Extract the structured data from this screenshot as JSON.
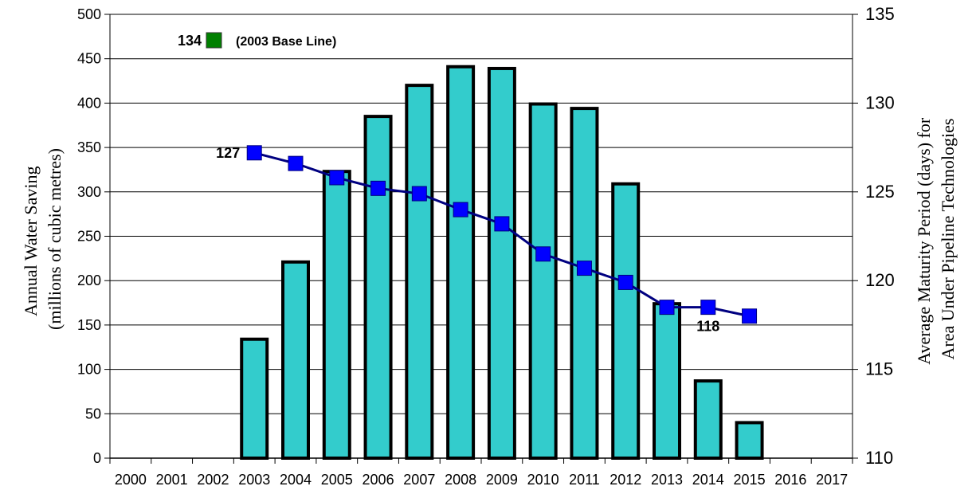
{
  "chart_data": {
    "type": "bar",
    "categories": [
      "2000",
      "2001",
      "2002",
      "2003",
      "2004",
      "2005",
      "2006",
      "2007",
      "2008",
      "2009",
      "2010",
      "2011",
      "2012",
      "2013",
      "2014",
      "2015",
      "2016",
      "2017"
    ],
    "series": [
      {
        "type": "bar",
        "axis": "left",
        "color": "#33CCCC",
        "values": [
          null,
          null,
          null,
          134,
          221,
          323,
          385,
          420,
          441,
          439,
          399,
          394,
          309,
          174,
          87,
          40,
          null,
          null
        ]
      },
      {
        "type": "line",
        "axis": "right",
        "color": "#000080",
        "marker_color": "#0000FF",
        "values": [
          null,
          null,
          null,
          127.2,
          126.6,
          125.8,
          125.2,
          124.9,
          124.0,
          123.2,
          121.5,
          120.7,
          119.9,
          118.5,
          118.5,
          118.0,
          null,
          null
        ]
      }
    ],
    "ylabel_lines": [
      "Annual Water Saving",
      "(millions of cubic metres)"
    ],
    "y2label_lines": [
      "Average Maturity Period (days) for",
      "Area Under Pipeline Technologies"
    ],
    "ylim": [
      0,
      500
    ],
    "yticks": [
      0,
      50,
      100,
      150,
      200,
      250,
      300,
      350,
      400,
      450,
      500
    ],
    "y2lim": [
      110,
      135
    ],
    "y2ticks": [
      110,
      115,
      120,
      125,
      130,
      135
    ],
    "grid": true,
    "annotations": {
      "start_label": "127",
      "end_label": "118",
      "legend_value": "134",
      "legend_color": "#008000",
      "legend_text": "(2003 Base Line)"
    }
  }
}
